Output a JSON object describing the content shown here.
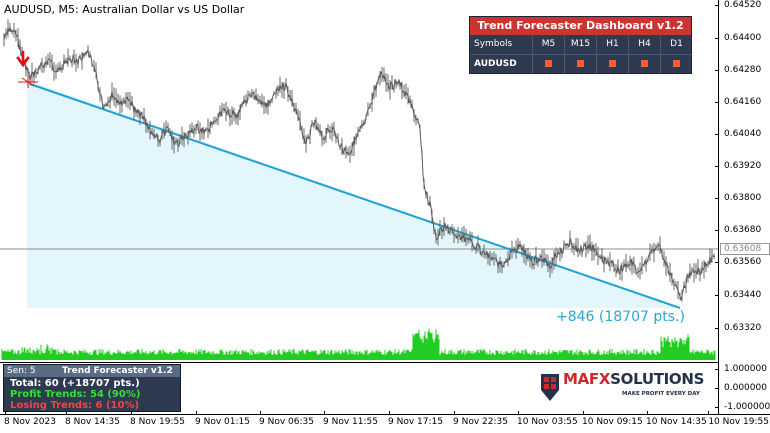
{
  "chart": {
    "title": "AUDUSD, M5:  Australian Dollar vs US Dollar",
    "current_price": "0.63608",
    "price_levels": [
      "0.64520",
      "0.64400",
      "0.64280",
      "0.64160",
      "0.64040",
      "0.63920",
      "0.63800",
      "0.63680",
      "0.63560",
      "0.63440",
      "0.63320"
    ],
    "result_label": "+846 (18707 pts.)",
    "trend_line_color": "#1fa3d6",
    "trend_fill_color": "#e2f6fc",
    "candle_color": "#5a5a5a",
    "volume_color": "#22cc22",
    "signal_arrow_color": "#dd1111"
  },
  "dashboard": {
    "title": "Trend Forecaster Dashboard v1.2",
    "headers": [
      "Symbols",
      "M5",
      "M15",
      "H1",
      "H4",
      "D1"
    ],
    "rows": [
      {
        "symbol": "AUDUSD",
        "signals": [
          "sell",
          "sell",
          "sell",
          "sell",
          "sell"
        ]
      }
    ]
  },
  "indicator": {
    "sens_label": "Sen: 5",
    "name": "Trend Forecaster v1.2",
    "total": "Total: 60 (+18707 pts.)",
    "profit": "Profit Trends: 54 (90%)",
    "losing": "Losing Trends: 6 (10%)",
    "levels": [
      "1.000000",
      "0.000000",
      "-1.000000"
    ]
  },
  "logo": {
    "brand_left": "MAFX",
    "brand_right": "SOLUTIONS",
    "tagline": "MAKE PROFIT EVERY DAY"
  },
  "time_axis": {
    "labels": [
      "8 Nov 2023",
      "8 Nov 14:35",
      "8 Nov 19:55",
      "9 Nov 01:15",
      "9 Nov 06:35",
      "9 Nov 11:55",
      "9 Nov 17:15",
      "9 Nov 22:35",
      "10 Nov 03:55",
      "10 Nov 09:15",
      "10 Nov 14:35",
      "10 Nov 19:55"
    ]
  }
}
